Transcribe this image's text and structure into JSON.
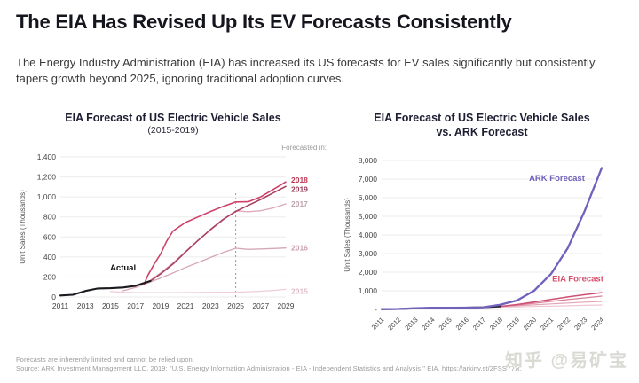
{
  "page": {
    "title": "The EIA Has Revised Up Its EV Forecasts Consistently",
    "subtitle": "The Energy Industry Administration (EIA) has increased its US forecasts for EV sales significantly but consistently tapers growth beyond 2025, ignoring traditional adoption curves.",
    "footnote1": "Forecasts are inherently limited and cannot be relied upon.",
    "footnote2": "Source: ARK Investment Management LLC, 2019; \"U.S. Energy Information Administration - EIA - Independent Statistics and Analysis,\" EIA, https://arkinv.st/2FSSY7R.",
    "watermark": "知乎 @易矿宝"
  },
  "colors": {
    "title_text": "#15151e",
    "actual_line": "#1a1a1f",
    "ark_purple": "#7161bb",
    "eia_pink": "#cf4168",
    "gridline": "#ebebeb",
    "watermark_gray": "#dadad4"
  },
  "chart_data": [
    {
      "type": "line",
      "title": "EIA Forecast of US Electric Vehicle Sales",
      "subtitle": "(2015-2019)",
      "legend_note": "Forecasted in:",
      "ylabel": "Unit Sales (Thousands)",
      "xlabel": "",
      "xlim": [
        2011,
        2029
      ],
      "ylim": [
        0,
        1400
      ],
      "grid": true,
      "xticks": [
        {
          "v": 2011,
          "l": "2011"
        },
        {
          "v": 2013,
          "l": "2013"
        },
        {
          "v": 2015,
          "l": "2015"
        },
        {
          "v": 2017,
          "l": "2017"
        },
        {
          "v": 2019,
          "l": "2019"
        },
        {
          "v": 2021,
          "l": "2021"
        },
        {
          "v": 2023,
          "l": "2023"
        },
        {
          "v": 2025,
          "l": "2025"
        },
        {
          "v": 2027,
          "l": "2027"
        },
        {
          "v": 2029,
          "l": "2029"
        }
      ],
      "yticks": [
        {
          "v": 0,
          "l": "0"
        },
        {
          "v": 200,
          "l": "200"
        },
        {
          "v": 400,
          "l": "400"
        },
        {
          "v": 600,
          "l": "600"
        },
        {
          "v": 800,
          "l": "800"
        },
        {
          "v": 1000,
          "l": "1,000"
        },
        {
          "v": 1200,
          "l": "1,200"
        },
        {
          "v": 1400,
          "l": "1,400"
        }
      ],
      "vline": {
        "x": 2025,
        "y0": 0,
        "y1": 1040
      },
      "series": [
        {
          "name": "Forecast 2015",
          "color": "#eecdd7",
          "width": 1.3,
          "x": [
            2015,
            2016,
            2017,
            2018,
            2020,
            2022,
            2024,
            2025,
            2026,
            2027,
            2028,
            2029
          ],
          "y": [
            55,
            47,
            44,
            43,
            43,
            45,
            47,
            48,
            52,
            58,
            66,
            76
          ]
        },
        {
          "name": "Forecast 2016",
          "color": "#d5a7b5",
          "width": 1.3,
          "x": [
            2016,
            2017,
            2018,
            2019,
            2020,
            2021,
            2022,
            2023,
            2024,
            2025,
            2026,
            2027,
            2028,
            2029
          ],
          "y": [
            62,
            95,
            140,
            190,
            240,
            295,
            345,
            395,
            445,
            487,
            476,
            480,
            485,
            490
          ]
        },
        {
          "name": "Forecast 2017",
          "color": "#dcacba",
          "width": 1.4,
          "x": [
            2016.8,
            2017,
            2018,
            2019,
            2020,
            2021,
            2022,
            2023,
            2024,
            2025,
            2026,
            2027,
            2028,
            2029
          ],
          "y": [
            90,
            95,
            150,
            240,
            340,
            455,
            565,
            670,
            770,
            860,
            852,
            862,
            890,
            930
          ]
        },
        {
          "name": "Forecast 2019",
          "color": "#aa3f63",
          "width": 1.6,
          "x": [
            2018.2,
            2019,
            2020,
            2021,
            2022,
            2023,
            2024,
            2025,
            2026,
            2027,
            2028,
            2029
          ],
          "y": [
            160,
            230,
            330,
            450,
            565,
            675,
            775,
            855,
            915,
            975,
            1040,
            1105
          ]
        },
        {
          "name": "Forecast 2018",
          "color": "#cf4168",
          "width": 1.6,
          "x": [
            2017.7,
            2018,
            2018.5,
            2019,
            2019.5,
            2020,
            2021,
            2022,
            2023,
            2024,
            2025,
            2026,
            2027,
            2028,
            2029
          ],
          "y": [
            130,
            220,
            330,
            430,
            560,
            660,
            745,
            800,
            855,
            905,
            950,
            952,
            1000,
            1075,
            1150
          ]
        },
        {
          "name": "Actual",
          "color": "#1a1a1f",
          "width": 2.1,
          "x": [
            2011,
            2012,
            2013,
            2014,
            2015,
            2016,
            2017,
            2018.2
          ],
          "y": [
            15,
            22,
            60,
            85,
            88,
            95,
            112,
            160
          ]
        }
      ],
      "end_labels": [
        {
          "text": "2018",
          "v": 1150,
          "dy": -2,
          "color": "#bd3852"
        },
        {
          "text": "2019",
          "v": 1105,
          "dy": 3,
          "color": "#9c3a58"
        },
        {
          "text": "2017",
          "v": 930,
          "dy": 0,
          "color": "#c0a4ac"
        },
        {
          "text": "2016",
          "v": 490,
          "dy": 0,
          "color": "#c99fad"
        },
        {
          "text": "2015",
          "v": 76,
          "dy": 2,
          "color": "#dfbcc6"
        }
      ],
      "annotations": [
        {
          "text": "Actual",
          "x": 2016.0,
          "v": 265,
          "anchor": "middle",
          "color": "#111111",
          "bold": true
        }
      ]
    },
    {
      "type": "line",
      "title": "EIA Forecast of US Electric Vehicle Sales",
      "subtitle": "vs. ARK Forecast",
      "ylabel": "Unit Sales (Thousands)",
      "xlabel": "",
      "xlim": [
        2011,
        2024
      ],
      "ylim": [
        0,
        8000
      ],
      "grid": true,
      "rotated_xticks": true,
      "xticks": [
        {
          "v": 2011,
          "l": "2011"
        },
        {
          "v": 2012,
          "l": "2012"
        },
        {
          "v": 2013,
          "l": "2013"
        },
        {
          "v": 2014,
          "l": "2014"
        },
        {
          "v": 2015,
          "l": "2015"
        },
        {
          "v": 2016,
          "l": "2016"
        },
        {
          "v": 2017,
          "l": "2017"
        },
        {
          "v": 2018,
          "l": "2018"
        },
        {
          "v": 2019,
          "l": "2019"
        },
        {
          "v": 2020,
          "l": "2020"
        },
        {
          "v": 2021,
          "l": "2021"
        },
        {
          "v": 2022,
          "l": "2022"
        },
        {
          "v": 2023,
          "l": "2023"
        },
        {
          "v": 2024,
          "l": "2024"
        }
      ],
      "yticks": [
        {
          "v": 0,
          "l": "-"
        },
        {
          "v": 1000,
          "l": "1,000"
        },
        {
          "v": 2000,
          "l": "2,000"
        },
        {
          "v": 3000,
          "l": "3,000"
        },
        {
          "v": 4000,
          "l": "4,000"
        },
        {
          "v": 5000,
          "l": "5,000"
        },
        {
          "v": 6000,
          "l": "6,000"
        },
        {
          "v": 7000,
          "l": "7,000"
        },
        {
          "v": 8000,
          "l": "8,000"
        }
      ],
      "series": [
        {
          "name": "EIA Forecast 2015",
          "color": "#efc6d1",
          "width": 1.2,
          "x": [
            2015,
            2016,
            2017,
            2018,
            2019,
            2020,
            2021,
            2022,
            2023,
            2024
          ],
          "y": [
            88,
            95,
            105,
            120,
            135,
            155,
            175,
            195,
            220,
            240
          ]
        },
        {
          "name": "EIA Forecast 2016",
          "color": "#e2a4b5",
          "width": 1.2,
          "x": [
            2016,
            2017,
            2018,
            2019,
            2020,
            2021,
            2022,
            2023,
            2024
          ],
          "y": [
            95,
            112,
            150,
            195,
            245,
            295,
            345,
            390,
            430
          ]
        },
        {
          "name": "EIA Forecast 2017",
          "color": "#d97f97",
          "width": 1.3,
          "x": [
            2017,
            2018,
            2019,
            2020,
            2021,
            2022,
            2023,
            2024
          ],
          "y": [
            112,
            160,
            240,
            330,
            430,
            530,
            620,
            715
          ]
        },
        {
          "name": "EIA Forecast 2018",
          "color": "#cf4f72",
          "width": 1.5,
          "x": [
            2018,
            2019,
            2020,
            2021,
            2022,
            2023,
            2024
          ],
          "y": [
            160,
            260,
            400,
            540,
            670,
            790,
            900
          ]
        },
        {
          "name": "Actual",
          "color": "#1a1a1f",
          "width": 2.0,
          "x": [
            2011,
            2012,
            2013,
            2014,
            2015,
            2016,
            2017,
            2018
          ],
          "y": [
            15,
            22,
            60,
            85,
            88,
            95,
            112,
            160
          ]
        },
        {
          "name": "ARK Forecast",
          "color": "#7161bb",
          "width": 2.3,
          "x": [
            2011,
            2012,
            2013,
            2014,
            2015,
            2016,
            2017,
            2018,
            2019,
            2020,
            2021,
            2022,
            2023,
            2024
          ],
          "y": [
            15,
            22,
            60,
            85,
            88,
            95,
            115,
            250,
            480,
            1000,
            1900,
            3300,
            5300,
            7600
          ]
        }
      ],
      "end_labels": [],
      "annotations": [
        {
          "text": "ARK Forecast",
          "x": 2023.0,
          "v": 6900,
          "anchor": "end",
          "color": "#7161bb",
          "bold": true
        },
        {
          "text": "EIA Forecast",
          "x": 2024.1,
          "v": 1500,
          "anchor": "end",
          "color": "#d4506e",
          "bold": true
        }
      ]
    }
  ]
}
